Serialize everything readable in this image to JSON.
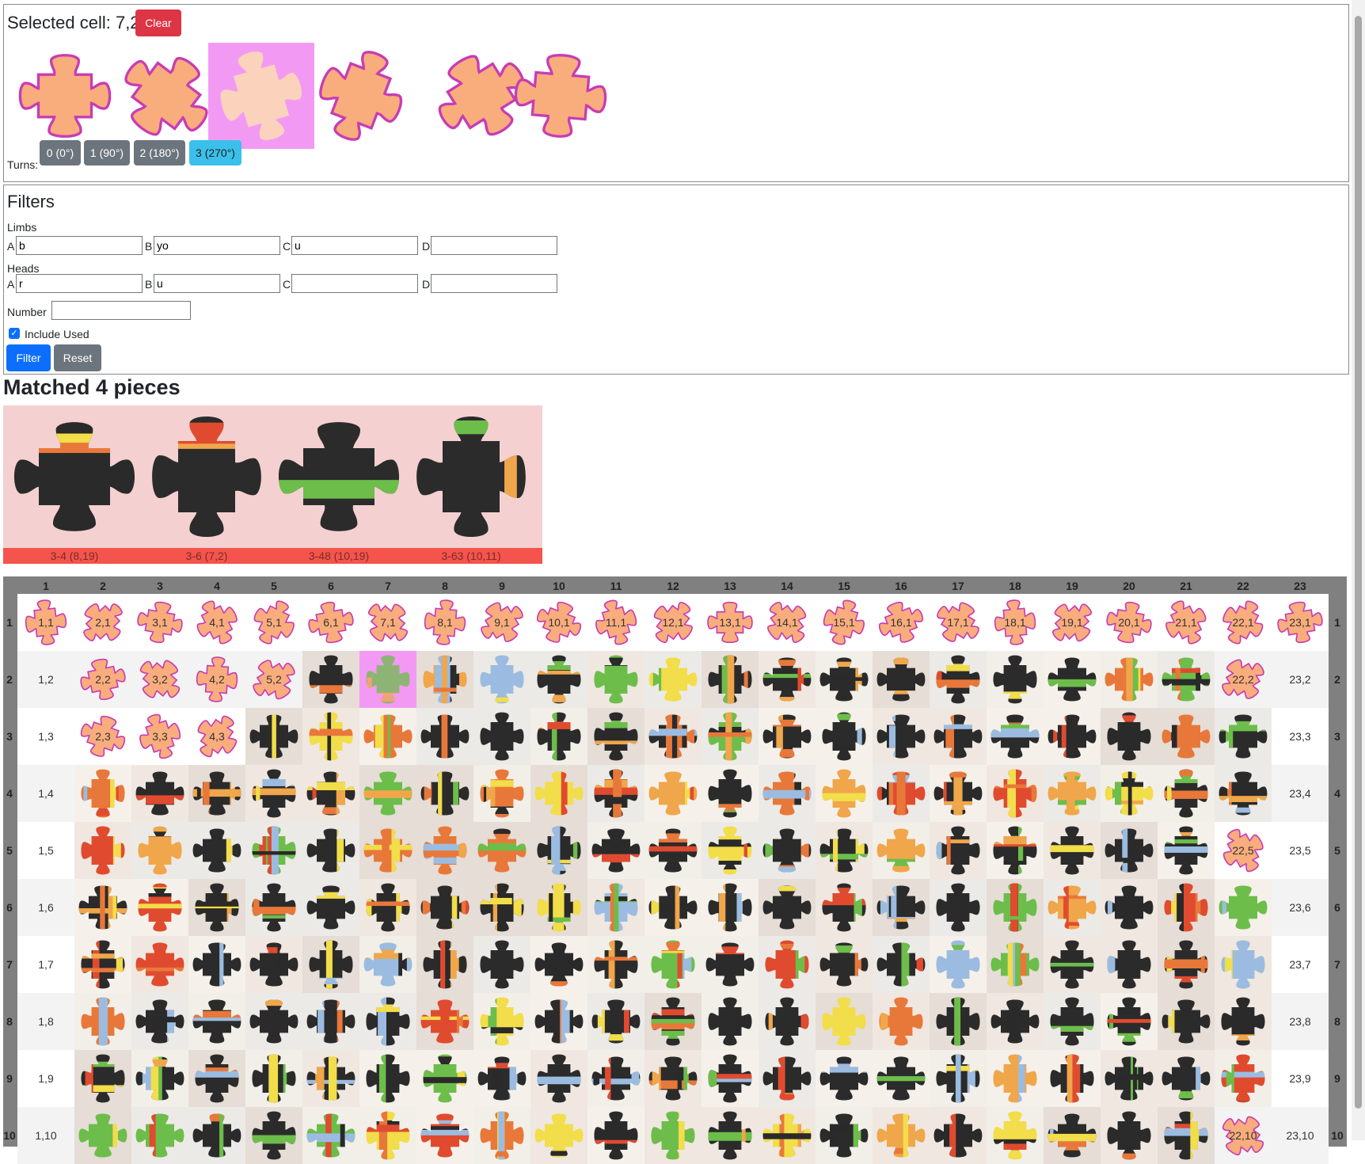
{
  "selection": {
    "title": "Selected cell: 7,2",
    "clear_label": "Clear",
    "turns_label": "Turns:",
    "turns": [
      "0 (0°)",
      "1 (90°)",
      "2 (180°)",
      "3 (270°)"
    ],
    "active_turn": 3,
    "candidates_count": 6,
    "highlighted_candidate": 2
  },
  "filters": {
    "title": "Filters",
    "limbs_label": "Limbs",
    "heads_label": "Heads",
    "number_label": "Number",
    "include_used_label": "Include Used",
    "include_used": true,
    "filter_label": "Filter",
    "reset_label": "Reset",
    "slot_labels": [
      "A",
      "B",
      "C",
      "D"
    ],
    "limbs": [
      "b",
      "yo",
      "u",
      ""
    ],
    "heads": [
      "r",
      "u",
      "",
      ""
    ],
    "number": ""
  },
  "matched": {
    "title": "Matched 4 pieces",
    "pieces": [
      "3-4 (8,19)",
      "3-6 (7,2)",
      "3-48 (10,19)",
      "3-63 (10,11)"
    ]
  },
  "board": {
    "columns": 23,
    "visible_rows": 10,
    "selected_cell": [
      7,
      2
    ]
  },
  "colors": {
    "placeholder_piece": "#f9ad7d",
    "placeholder_outline": "#c83cb4",
    "highlight": "#f29af3",
    "caption_red": "#f4544c",
    "primary_blue": "#0d6efd",
    "danger_red": "#dc3545",
    "secondary_gray": "#6c757d",
    "info_cyan": "#3ac0ea"
  }
}
